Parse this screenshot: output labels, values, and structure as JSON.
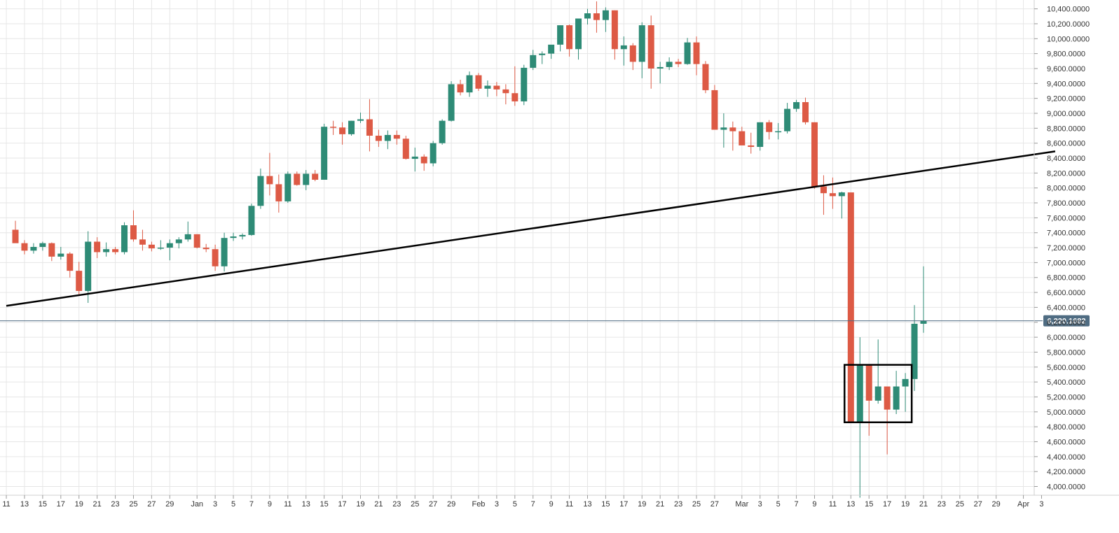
{
  "chart_data": {
    "type": "candlestick",
    "title": "",
    "xlabel": "",
    "ylabel": "",
    "ylim": [
      3850,
      10500
    ],
    "grid": true,
    "y_ticks": [
      "4,000.0000",
      "4,200.0000",
      "4,400.0000",
      "4,600.0000",
      "4,800.0000",
      "5,000.0000",
      "5,200.0000",
      "5,400.0000",
      "5,600.0000",
      "5,800.0000",
      "6,000.0000",
      "6,200.0000",
      "6,400.0000",
      "6,600.0000",
      "6,800.0000",
      "7,000.0000",
      "7,200.0000",
      "7,400.0000",
      "7,600.0000",
      "7,800.0000",
      "8,000.0000",
      "8,200.0000",
      "8,400.0000",
      "8,600.0000",
      "8,800.0000",
      "9,000.0000",
      "9,200.0000",
      "9,400.0000",
      "9,600.0000",
      "9,800.0000",
      "10,000.0000",
      "10,200.0000",
      "10,400.0000"
    ],
    "x_ticks": [
      {
        "i": -1,
        "label": "11"
      },
      {
        "i": 1,
        "label": "13"
      },
      {
        "i": 3,
        "label": "15"
      },
      {
        "i": 5,
        "label": "17"
      },
      {
        "i": 7,
        "label": "19"
      },
      {
        "i": 9,
        "label": "21"
      },
      {
        "i": 11,
        "label": "23"
      },
      {
        "i": 13,
        "label": "25"
      },
      {
        "i": 15,
        "label": "27"
      },
      {
        "i": 17,
        "label": "29"
      },
      {
        "i": 20,
        "label": "Jan"
      },
      {
        "i": 22,
        "label": "3"
      },
      {
        "i": 24,
        "label": "5"
      },
      {
        "i": 26,
        "label": "7"
      },
      {
        "i": 28,
        "label": "9"
      },
      {
        "i": 30,
        "label": "11"
      },
      {
        "i": 32,
        "label": "13"
      },
      {
        "i": 34,
        "label": "15"
      },
      {
        "i": 36,
        "label": "17"
      },
      {
        "i": 38,
        "label": "19"
      },
      {
        "i": 40,
        "label": "21"
      },
      {
        "i": 42,
        "label": "23"
      },
      {
        "i": 44,
        "label": "25"
      },
      {
        "i": 46,
        "label": "27"
      },
      {
        "i": 48,
        "label": "29"
      },
      {
        "i": 51,
        "label": "Feb"
      },
      {
        "i": 53,
        "label": "3"
      },
      {
        "i": 55,
        "label": "5"
      },
      {
        "i": 57,
        "label": "7"
      },
      {
        "i": 59,
        "label": "9"
      },
      {
        "i": 61,
        "label": "11"
      },
      {
        "i": 63,
        "label": "13"
      },
      {
        "i": 65,
        "label": "15"
      },
      {
        "i": 67,
        "label": "17"
      },
      {
        "i": 69,
        "label": "19"
      },
      {
        "i": 71,
        "label": "21"
      },
      {
        "i": 73,
        "label": "23"
      },
      {
        "i": 75,
        "label": "25"
      },
      {
        "i": 77,
        "label": "27"
      },
      {
        "i": 80,
        "label": "Mar"
      },
      {
        "i": 82,
        "label": "3"
      },
      {
        "i": 84,
        "label": "5"
      },
      {
        "i": 86,
        "label": "7"
      },
      {
        "i": 88,
        "label": "9"
      },
      {
        "i": 90,
        "label": "11"
      },
      {
        "i": 92,
        "label": "13"
      },
      {
        "i": 94,
        "label": "15"
      },
      {
        "i": 96,
        "label": "17"
      },
      {
        "i": 98,
        "label": "19"
      },
      {
        "i": 100,
        "label": "21"
      },
      {
        "i": 102,
        "label": "23"
      },
      {
        "i": 104,
        "label": "25"
      },
      {
        "i": 106,
        "label": "27"
      },
      {
        "i": 108,
        "label": "29"
      },
      {
        "i": 111,
        "label": "Apr"
      },
      {
        "i": 113,
        "label": "3"
      }
    ],
    "candles": [
      [
        7440,
        7560,
        7300,
        7260
      ],
      [
        7260,
        7300,
        7110,
        7160
      ],
      [
        7160,
        7260,
        7120,
        7210
      ],
      [
        7210,
        7280,
        7160,
        7260
      ],
      [
        7260,
        7270,
        7020,
        7080
      ],
      [
        7080,
        7210,
        7040,
        7120
      ],
      [
        7120,
        7140,
        6800,
        6890
      ],
      [
        6890,
        7010,
        6560,
        6620
      ],
      [
        6620,
        7420,
        6460,
        7280
      ],
      [
        7280,
        7340,
        7060,
        7140
      ],
      [
        7140,
        7270,
        7080,
        7180
      ],
      [
        7180,
        7210,
        7110,
        7140
      ],
      [
        7140,
        7540,
        7110,
        7500
      ],
      [
        7500,
        7700,
        7280,
        7310
      ],
      [
        7310,
        7440,
        7160,
        7240
      ],
      [
        7240,
        7280,
        7150,
        7190
      ],
      [
        7190,
        7300,
        7170,
        7200
      ],
      [
        7200,
        7310,
        7030,
        7260
      ],
      [
        7260,
        7340,
        7190,
        7310
      ],
      [
        7310,
        7550,
        7280,
        7380
      ],
      [
        7380,
        7380,
        7190,
        7200
      ],
      [
        7200,
        7250,
        7140,
        7180
      ],
      [
        7180,
        7240,
        6890,
        6950
      ],
      [
        6950,
        7400,
        6880,
        7330
      ],
      [
        7330,
        7400,
        7290,
        7350
      ],
      [
        7350,
        7390,
        7310,
        7370
      ],
      [
        7370,
        7790,
        7360,
        7760
      ],
      [
        7760,
        8260,
        7720,
        8160
      ],
      [
        8160,
        8470,
        7900,
        8050
      ],
      [
        8050,
        8180,
        7670,
        7820
      ],
      [
        7820,
        8220,
        7800,
        8190
      ],
      [
        8190,
        8220,
        8030,
        8040
      ],
      [
        8040,
        8240,
        7970,
        8190
      ],
      [
        8190,
        8240,
        8090,
        8110
      ],
      [
        8110,
        8860,
        8110,
        8820
      ],
      [
        8820,
        8900,
        8710,
        8810
      ],
      [
        8810,
        8880,
        8580,
        8720
      ],
      [
        8720,
        8900,
        8700,
        8900
      ],
      [
        8900,
        9010,
        8870,
        8920
      ],
      [
        8920,
        9190,
        8490,
        8700
      ],
      [
        8700,
        8780,
        8550,
        8630
      ],
      [
        8630,
        8770,
        8520,
        8710
      ],
      [
        8710,
        8770,
        8580,
        8660
      ],
      [
        8660,
        8700,
        8380,
        8390
      ],
      [
        8390,
        8540,
        8220,
        8420
      ],
      [
        8420,
        8450,
        8230,
        8330
      ],
      [
        8330,
        8630,
        8290,
        8600
      ],
      [
        8600,
        8920,
        8580,
        8900
      ],
      [
        8900,
        9430,
        8890,
        9390
      ],
      [
        9390,
        9450,
        9240,
        9280
      ],
      [
        9280,
        9560,
        9220,
        9510
      ],
      [
        9510,
        9540,
        9300,
        9330
      ],
      [
        9330,
        9440,
        9220,
        9370
      ],
      [
        9370,
        9420,
        9230,
        9320
      ],
      [
        9320,
        9390,
        9120,
        9270
      ],
      [
        9270,
        9630,
        9100,
        9160
      ],
      [
        9160,
        9650,
        9110,
        9610
      ],
      [
        9610,
        9850,
        9580,
        9780
      ],
      [
        9780,
        9830,
        9660,
        9800
      ],
      [
        9800,
        9910,
        9730,
        9920
      ],
      [
        9920,
        10180,
        9830,
        10180
      ],
      [
        10180,
        10190,
        9760,
        9860
      ],
      [
        9860,
        10260,
        9720,
        10270
      ],
      [
        10270,
        10400,
        10190,
        10340
      ],
      [
        10340,
        10500,
        10080,
        10250
      ],
      [
        10250,
        10420,
        10090,
        10380
      ],
      [
        10380,
        10380,
        9720,
        9860
      ],
      [
        9860,
        10030,
        9640,
        9910
      ],
      [
        9910,
        9940,
        9580,
        9690
      ],
      [
        9690,
        10220,
        9470,
        10180
      ],
      [
        10180,
        10310,
        9330,
        9600
      ],
      [
        9600,
        9690,
        9400,
        9620
      ],
      [
        9620,
        9750,
        9580,
        9690
      ],
      [
        9690,
        9730,
        9620,
        9660
      ],
      [
        9660,
        10010,
        9650,
        9950
      ],
      [
        9950,
        10030,
        9510,
        9660
      ],
      [
        9660,
        9700,
        9270,
        9310
      ],
      [
        9310,
        9380,
        8800,
        8780
      ],
      [
        8780,
        9000,
        8540,
        8810
      ],
      [
        8810,
        8890,
        8500,
        8760
      ],
      [
        8760,
        8820,
        8580,
        8570
      ],
      [
        8570,
        8740,
        8460,
        8550
      ],
      [
        8550,
        8860,
        8500,
        8880
      ],
      [
        8880,
        8910,
        8650,
        8750
      ],
      [
        8750,
        8870,
        8650,
        8760
      ],
      [
        8760,
        9140,
        8730,
        9060
      ],
      [
        9060,
        9180,
        9020,
        9150
      ],
      [
        9150,
        9210,
        8850,
        8880
      ],
      [
        8880,
        8880,
        7990,
        8020
      ],
      [
        8020,
        8170,
        7640,
        7930
      ],
      [
        7930,
        8140,
        7720,
        7890
      ],
      [
        7890,
        7950,
        7590,
        7940
      ],
      [
        7940,
        7940,
        4850,
        4850
      ],
      [
        4850,
        6000,
        3850,
        5620
      ],
      [
        5620,
        5630,
        4680,
        5150
      ],
      [
        5150,
        5970,
        5110,
        5340
      ],
      [
        5340,
        5340,
        4430,
        5030
      ],
      [
        5030,
        5550,
        4970,
        5340
      ],
      [
        5340,
        5520,
        5000,
        5440
      ],
      [
        5440,
        6430,
        5280,
        6180
      ],
      [
        6180,
        6950,
        6060,
        6220
      ]
    ],
    "annotations": {
      "trendline": [
        [
          -1,
          6420
        ],
        [
          114.5,
          8490
        ]
      ],
      "box": {
        "x": [
          91.3,
          98.7
        ],
        "y": [
          4860,
          5630
        ]
      },
      "current_price": 6220.1682,
      "current_price_label": "6,220.1682"
    },
    "colors": {
      "up": "#2e8b76",
      "down": "#dd5a45",
      "price_line": "#4f6c82",
      "price_badge": "#4f6c82",
      "grid": "#e6e6e6",
      "annotation": "#000000"
    }
  }
}
